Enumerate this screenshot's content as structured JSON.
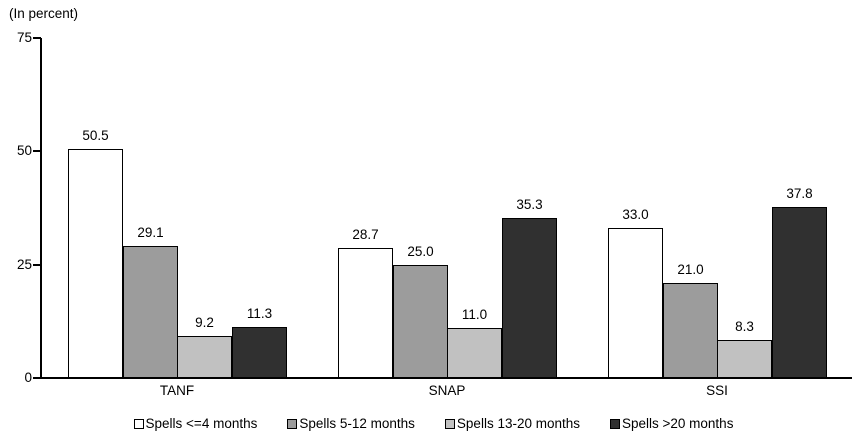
{
  "chart_data": {
    "type": "bar",
    "title": "(In percent)",
    "categories": [
      "TANF",
      "SNAP",
      "SSI"
    ],
    "series": [
      {
        "name": "Spells <=4 months",
        "fill": "#ffffff",
        "values": [
          50.5,
          28.7,
          33.0
        ],
        "labels": [
          "50.5",
          "28.7",
          "33.0"
        ]
      },
      {
        "name": "Spells 5-12 months",
        "fill": "#9c9c9c",
        "values": [
          29.1,
          25.0,
          21.0
        ],
        "labels": [
          "29.1",
          "25.0",
          "21.0"
        ]
      },
      {
        "name": "Spells 13-20 months",
        "fill": "#c1c1c1",
        "values": [
          9.2,
          11.0,
          8.3
        ],
        "labels": [
          "9.2",
          "11.0",
          "8.3"
        ]
      },
      {
        "name": "Spells >20 months",
        "fill": "#303030",
        "values": [
          11.3,
          35.3,
          37.8
        ],
        "labels": [
          "11.3",
          "35.3",
          "37.8"
        ]
      }
    ],
    "xlabel": "",
    "ylabel": "",
    "ylim": [
      0,
      75
    ],
    "yticks": [
      0,
      25,
      50,
      75
    ],
    "grid": false,
    "legend_position": "bottom",
    "colors": {
      "axis": "#000000",
      "text": "#000000",
      "background": "#ffffff"
    }
  }
}
